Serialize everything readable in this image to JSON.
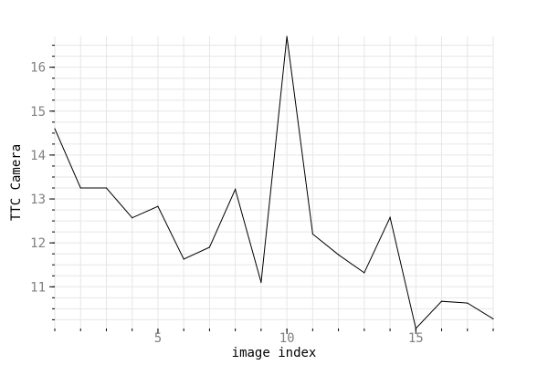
{
  "chart_data": {
    "type": "line",
    "xlabel": "image index",
    "ylabel": "TTC Camera",
    "xlim": [
      1,
      18
    ],
    "ylim": [
      10.05,
      16.7
    ],
    "x_ticks": [
      5,
      10,
      15
    ],
    "y_ticks": [
      11,
      12,
      13,
      14,
      15,
      16
    ],
    "x_minor_step": 1,
    "y_minor_step": 0.25,
    "grid": true,
    "legend": "none",
    "colors": {
      "line": "#000000",
      "grid": "#e6e6e6",
      "tick_label": "#808080"
    },
    "series": [
      {
        "x": [
          1,
          2,
          3,
          4,
          5,
          6,
          7,
          8,
          9,
          10,
          11,
          12,
          13,
          14,
          15,
          16,
          17,
          18
        ],
        "values": [
          14.6,
          13.25,
          13.25,
          12.57,
          12.83,
          11.63,
          11.9,
          13.22,
          11.1,
          16.7,
          12.2,
          11.73,
          11.32,
          12.58,
          10.05,
          10.67,
          10.63,
          10.27
        ]
      }
    ]
  }
}
